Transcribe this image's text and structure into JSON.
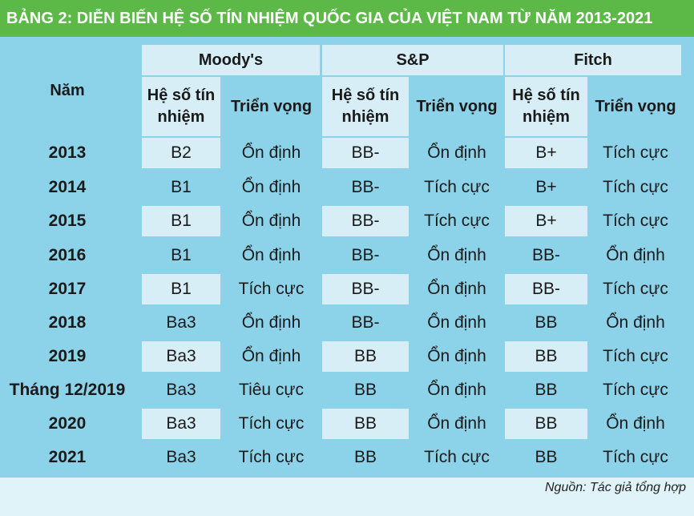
{
  "title": "BẢNG 2: DIỄN BIẾN HỆ SỐ TÍN NHIỆM QUỐC GIA CỦA VIỆT NAM TỪ NĂM 2013-2021",
  "header": {
    "year_label": "Năm",
    "agencies": [
      "Moody's",
      "S&P",
      "Fitch"
    ],
    "moodys_sub": [
      "Hệ số tín nhiệm",
      "Triển vọng"
    ],
    "sp_sub": [
      "Hệ số tín nhiệm",
      "Triển vọng"
    ],
    "fitch_sub": [
      "Hệ số tín nhiệm",
      "Triển vọng"
    ]
  },
  "rows": [
    [
      "2013",
      "B2",
      "Ổn định",
      "BB-",
      "Ổn định",
      "B+",
      "Tích cực"
    ],
    [
      "2014",
      "B1",
      "Ổn định",
      "BB-",
      "Tích cực",
      "B+",
      "Tích cực"
    ],
    [
      "2015",
      "B1",
      "Ổn định",
      "BB-",
      "Tích cực",
      "B+",
      "Tích cực"
    ],
    [
      "2016",
      "B1",
      "Ổn định",
      "BB-",
      "Ổn định",
      "BB-",
      "Ổn định"
    ],
    [
      "2017",
      "B1",
      "Tích cực",
      "BB-",
      "Ổn định",
      "BB-",
      "Tích cực"
    ],
    [
      "2018",
      "Ba3",
      "Ổn định",
      "BB-",
      "Ổn định",
      "BB",
      "Ổn định"
    ],
    [
      "2019",
      "Ba3",
      "Ổn định",
      "BB",
      "Ổn định",
      "BB",
      "Tích cực"
    ],
    [
      "Tháng 12/2019",
      "Ba3",
      "Tiêu cực",
      "BB",
      "Ổn định",
      "BB",
      "Tích cực"
    ],
    [
      "2020",
      "Ba3",
      "Tích cực",
      "BB",
      "Ổn định",
      "BB",
      "Ổn định"
    ],
    [
      "2021",
      "Ba3",
      "Tích cực",
      "BB",
      "Tích cực",
      "BB",
      "Tích cực"
    ]
  ],
  "source": "Nguồn: Tác giả tổng hợp",
  "colors": {
    "title_bg": "#5cb947",
    "table_bg": "#8cd3ea",
    "light_cell": "#d8eef6",
    "page_bg": "#dff3f8"
  }
}
